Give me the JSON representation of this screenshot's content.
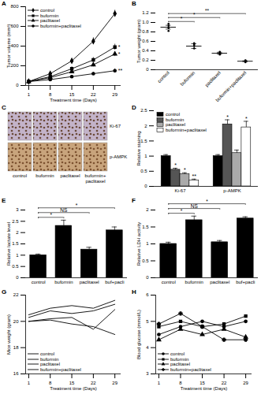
{
  "chart_data": [
    {
      "panel": "A",
      "type": "line",
      "x_label": "Treatment time (Days)",
      "y_label": "Tumor volume (mm³)",
      "x": [
        1,
        8,
        15,
        22,
        29
      ],
      "xlim": [
        0,
        31
      ],
      "xticks": [
        1,
        8,
        15,
        22,
        29
      ],
      "ylim": [
        0,
        800
      ],
      "yticks": [
        0,
        200,
        400,
        600,
        800
      ],
      "legend": "top-left",
      "series": [
        {
          "name": "control",
          "color": "#000000",
          "marker": "diamond",
          "values": [
            40,
            120,
            250,
            450,
            730
          ],
          "errors": [
            5,
            15,
            25,
            35,
            35
          ]
        },
        {
          "name": "buformin",
          "color": "#000000",
          "marker": "square",
          "values": [
            40,
            90,
            170,
            260,
            390
          ],
          "errors": [
            5,
            10,
            20,
            25,
            30
          ],
          "significance": "*"
        },
        {
          "name": "paclitaxel",
          "color": "#000000",
          "marker": "triangle",
          "values": [
            40,
            80,
            140,
            210,
            320
          ],
          "errors": [
            5,
            10,
            15,
            20,
            25
          ],
          "significance": "*"
        },
        {
          "name": "buformin+paclitaxel",
          "color": "#000000",
          "marker": "circle",
          "values": [
            40,
            60,
            90,
            120,
            150
          ],
          "errors": [
            5,
            8,
            10,
            15,
            20
          ],
          "significance": "**"
        }
      ]
    },
    {
      "panel": "B",
      "type": "dot",
      "y_label": "Tumor weight (gram)",
      "color": "#000000",
      "categories": [
        "control",
        "buformin",
        "paclitaxel",
        "buformin+paclitaxel"
      ],
      "values": [
        0.9,
        0.5,
        0.35,
        0.18
      ],
      "errors": [
        0.04,
        0.05,
        0.02,
        0.01
      ],
      "points": [
        [
          0.82,
          0.88,
          0.93,
          0.97
        ],
        [
          0.45,
          0.5,
          0.53,
          0.56
        ],
        [
          0.32,
          0.34,
          0.36,
          0.38
        ],
        [
          0.16,
          0.18,
          0.19,
          0.2
        ]
      ],
      "ylim": [
        0,
        1.2
      ],
      "yticks": [
        0,
        0.2,
        0.4,
        0.6,
        0.8,
        {
          "value": 1,
          "label": "1.0"
        },
        1.2
      ],
      "comparisons": [
        {
          "from": "control",
          "to": "buformin",
          "label": "*"
        },
        {
          "from": "control",
          "to": "paclitaxel",
          "label": "*"
        },
        {
          "from": "control",
          "to": "buformin+paclitaxel",
          "label": "**"
        }
      ]
    },
    {
      "panel": "C",
      "type": "image",
      "rows": [
        "Ki-67",
        "p-AMPK"
      ],
      "columns": [
        "control",
        "buformin",
        "paclitaxel",
        "buformin+paclitaxel"
      ]
    },
    {
      "panel": "D",
      "type": "bar",
      "y_label": "Relative staining",
      "categories": [
        "Ki-67",
        "p-AMPK"
      ],
      "ylim": [
        0,
        2.5
      ],
      "yticks": [
        0,
        0.5,
        1,
        1.5,
        2,
        2.5
      ],
      "legend": "top-left",
      "series": [
        {
          "name": "control",
          "color": "#000000",
          "values": [
            1.0,
            1.0
          ],
          "errors": [
            0.05,
            0.05
          ]
        },
        {
          "name": "buformin",
          "color": "#555555",
          "values": [
            0.55,
            2.05
          ],
          "errors": [
            0.05,
            0.15
          ],
          "significance": [
            "*",
            "*"
          ]
        },
        {
          "name": "paclitaxel",
          "color": "#aaaaaa",
          "values": [
            0.4,
            1.1
          ],
          "errors": [
            0.05,
            0.1
          ],
          "significance": [
            "*",
            null
          ]
        },
        {
          "name": "buformin+paclitaxel",
          "color": "#ffffff",
          "values": [
            0.2,
            1.95
          ],
          "errors": [
            0.04,
            0.2
          ],
          "significance": [
            "**",
            "*"
          ]
        }
      ]
    },
    {
      "panel": "E",
      "type": "bar",
      "y_label": "Relative lactate level",
      "color": "#000000",
      "categories": [
        "control",
        "buformin",
        "paclitaxel",
        "buf+pacli"
      ],
      "values": [
        1.0,
        2.3,
        1.25,
        2.1
      ],
      "errors": [
        0.05,
        0.25,
        0.1,
        0.15
      ],
      "ylim": [
        0,
        3
      ],
      "yticks": [
        0,
        0.5,
        1,
        1.5,
        2,
        2.5,
        3
      ],
      "comparisons": [
        {
          "from": "control",
          "to": "buformin",
          "label": "*"
        },
        {
          "from": "control",
          "to": "paclitaxel",
          "label": "NS"
        },
        {
          "from": "control",
          "to": "buf+pacli",
          "label": "*"
        }
      ]
    },
    {
      "panel": "F",
      "type": "bar",
      "y_label": "Relative LDH activity",
      "color": "#000000",
      "categories": [
        "control",
        "buformin",
        "paclitaxel",
        "buf+pacli"
      ],
      "values": [
        1.0,
        1.7,
        1.05,
        1.75
      ],
      "errors": [
        0.05,
        0.12,
        0.05,
        0.05
      ],
      "ylim": [
        0,
        2
      ],
      "yticks": [
        0,
        0.5,
        1,
        1.5,
        2
      ],
      "comparisons": [
        {
          "from": "control",
          "to": "buformin",
          "label": "*"
        },
        {
          "from": "control",
          "to": "paclitaxel",
          "label": "NS"
        },
        {
          "from": "control",
          "to": "buf+pacli",
          "label": "*"
        }
      ]
    },
    {
      "panel": "G",
      "type": "line",
      "x_label": "Treatment time (Days)",
      "y_label": "Mice weight (gram)",
      "x": [
        1,
        8,
        15,
        22,
        29
      ],
      "xlim": [
        0,
        31
      ],
      "xticks": [
        1,
        8,
        15,
        22,
        29
      ],
      "ylim": [
        16,
        22
      ],
      "yticks": [
        16,
        18,
        20,
        22
      ],
      "legend": "bottom-left",
      "series": [
        {
          "name": "control",
          "color": "#000000",
          "values": [
            20.5,
            21.0,
            21.2,
            21.0,
            21.6
          ]
        },
        {
          "name": "buformin",
          "color": "#000000",
          "values": [
            20.3,
            20.8,
            20.6,
            20.8,
            21.3
          ]
        },
        {
          "name": "paclitaxel",
          "color": "#000000",
          "values": [
            20.0,
            20.2,
            20.3,
            19.4,
            20.9
          ]
        },
        {
          "name": "buformin+paclitaxel",
          "color": "#000000",
          "values": [
            20.0,
            20.1,
            19.8,
            19.6,
            19.0
          ]
        }
      ]
    },
    {
      "panel": "H",
      "type": "line",
      "x_label": "Treatment time (Days)",
      "y_label": "Blood glucose (mmol/L)",
      "x": [
        1,
        8,
        15,
        22,
        29
      ],
      "xlim": [
        0,
        31
      ],
      "xticks": [
        1,
        8,
        15,
        22,
        29
      ],
      "ylim": [
        3,
        6
      ],
      "yticks": [
        3,
        4,
        5,
        6
      ],
      "legend": "bottom-left",
      "series": [
        {
          "name": "control",
          "color": "#000000",
          "marker": "circle",
          "values": [
            4.5,
            4.8,
            5.0,
            4.8,
            5.0
          ]
        },
        {
          "name": "buformin",
          "color": "#000000",
          "marker": "square",
          "values": [
            4.8,
            5.0,
            4.8,
            4.9,
            5.2
          ]
        },
        {
          "name": "paclitaxel",
          "color": "#000000",
          "marker": "triangle",
          "values": [
            4.3,
            4.7,
            4.5,
            4.7,
            4.4
          ]
        },
        {
          "name": "buformin+paclitaxel",
          "color": "#000000",
          "marker": "cross",
          "values": [
            4.9,
            5.3,
            4.8,
            4.3,
            4.3
          ]
        }
      ]
    }
  ]
}
